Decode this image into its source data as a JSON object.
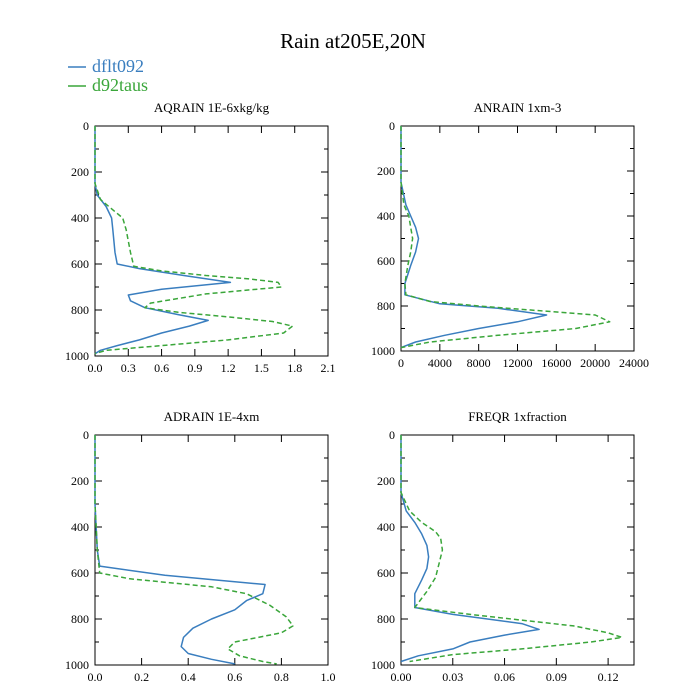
{
  "chart_data": {
    "title": "Rain at205E,20N",
    "legend": {
      "placement": "top-left",
      "entries": [
        {
          "name": "dflt092",
          "color": "#3a7ebf",
          "style": "solid"
        },
        {
          "name": "d92taus",
          "color": "#3aa63a",
          "style": "dashed"
        }
      ]
    },
    "panels": [
      {
        "type": "line",
        "title": "AQRAIN  1E-6xkg/kg",
        "xlim": [
          0,
          2.1
        ],
        "xticks": [
          "0.0",
          "0.3",
          "0.6",
          "0.9",
          "1.2",
          "1.5",
          "1.8",
          "2.1"
        ],
        "ylim": [
          1000,
          0
        ],
        "yticks": [
          "0",
          "200",
          "400",
          "600",
          "800",
          "1000"
        ],
        "series": [
          {
            "name": "dflt092",
            "points": [
              [
                0,
                0
              ],
              [
                0,
                250
              ],
              [
                0.02,
                300
              ],
              [
                0.1,
                350
              ],
              [
                0.15,
                400
              ],
              [
                0.16,
                450
              ],
              [
                0.17,
                500
              ],
              [
                0.18,
                550
              ],
              [
                0.2,
                600
              ],
              [
                0.4,
                620
              ],
              [
                0.8,
                650
              ],
              [
                1.22,
                680
              ],
              [
                0.6,
                710
              ],
              [
                0.3,
                735
              ],
              [
                0.32,
                760
              ],
              [
                0.45,
                790
              ],
              [
                0.75,
                820
              ],
              [
                1.02,
                845
              ],
              [
                0.85,
                870
              ],
              [
                0.6,
                900
              ],
              [
                0.4,
                930
              ],
              [
                0.2,
                955
              ],
              [
                0.05,
                975
              ],
              [
                0,
                990
              ]
            ]
          },
          {
            "name": "d92taus",
            "points": [
              [
                0,
                0
              ],
              [
                0,
                250
              ],
              [
                0.05,
                320
              ],
              [
                0.15,
                360
              ],
              [
                0.25,
                400
              ],
              [
                0.28,
                450
              ],
              [
                0.3,
                500
              ],
              [
                0.32,
                550
              ],
              [
                0.35,
                610
              ],
              [
                0.6,
                630
              ],
              [
                1.0,
                650
              ],
              [
                1.4,
                665
              ],
              [
                1.65,
                680
              ],
              [
                1.68,
                700
              ],
              [
                1.0,
                730
              ],
              [
                0.5,
                770
              ],
              [
                0.45,
                790
              ],
              [
                0.75,
                810
              ],
              [
                1.2,
                830
              ],
              [
                1.6,
                850
              ],
              [
                1.78,
                870
              ],
              [
                1.7,
                900
              ],
              [
                1.2,
                930
              ],
              [
                0.6,
                955
              ],
              [
                0.1,
                975
              ],
              [
                0,
                990
              ]
            ]
          }
        ]
      },
      {
        "type": "line",
        "title": "ANRAIN  1xm-3",
        "xlim": [
          0,
          24000
        ],
        "xticks": [
          "0",
          "4000",
          "8000",
          "12000",
          "16000",
          "20000",
          "24000"
        ],
        "ylim": [
          1000,
          0
        ],
        "yticks": [
          "0",
          "200",
          "400",
          "600",
          "800",
          "1000"
        ],
        "series": [
          {
            "name": "dflt092",
            "points": [
              [
                0,
                0
              ],
              [
                0,
                250
              ],
              [
                500,
                350
              ],
              [
                1000,
                400
              ],
              [
                1500,
                450
              ],
              [
                1800,
                500
              ],
              [
                1500,
                560
              ],
              [
                1000,
                620
              ],
              [
                400,
                700
              ],
              [
                400,
                750
              ],
              [
                4000,
                790
              ],
              [
                10000,
                810
              ],
              [
                15000,
                840
              ],
              [
                12000,
                870
              ],
              [
                8000,
                900
              ],
              [
                4500,
                930
              ],
              [
                1500,
                960
              ],
              [
                0,
                985
              ]
            ]
          },
          {
            "name": "d92taus",
            "points": [
              [
                0,
                0
              ],
              [
                0,
                250
              ],
              [
                300,
                350
              ],
              [
                800,
                400
              ],
              [
                1000,
                450
              ],
              [
                1200,
                500
              ],
              [
                1000,
                560
              ],
              [
                700,
                620
              ],
              [
                400,
                700
              ],
              [
                500,
                750
              ],
              [
                3000,
                780
              ],
              [
                8000,
                800
              ],
              [
                14000,
                820
              ],
              [
                20000,
                840
              ],
              [
                21500,
                870
              ],
              [
                18000,
                900
              ],
              [
                10000,
                930
              ],
              [
                3000,
                960
              ],
              [
                0,
                985
              ]
            ]
          }
        ]
      },
      {
        "type": "line",
        "title": "ADRAIN  1E-4xm",
        "xlim": [
          0,
          1.0
        ],
        "xticks": [
          "0.0",
          "0.2",
          "0.4",
          "0.6",
          "0.8",
          "1.0"
        ],
        "ylim": [
          1000,
          0
        ],
        "yticks": [
          "0",
          "200",
          "400",
          "600",
          "800",
          "1000"
        ],
        "series": [
          {
            "name": "dflt092",
            "points": [
              [
                0,
                0
              ],
              [
                0,
                300
              ],
              [
                0.01,
                500
              ],
              [
                0.02,
                570
              ],
              [
                0.3,
                610
              ],
              [
                0.73,
                650
              ],
              [
                0.72,
                690
              ],
              [
                0.65,
                720
              ],
              [
                0.6,
                760
              ],
              [
                0.5,
                800
              ],
              [
                0.42,
                840
              ],
              [
                0.38,
                880
              ],
              [
                0.37,
                920
              ],
              [
                0.4,
                950
              ],
              [
                0.5,
                975
              ],
              [
                0.6,
                995
              ]
            ]
          },
          {
            "name": "d92taus",
            "points": [
              [
                0,
                0
              ],
              [
                0,
                300
              ],
              [
                0.01,
                500
              ],
              [
                0.02,
                600
              ],
              [
                0.15,
                625
              ],
              [
                0.5,
                660
              ],
              [
                0.65,
                690
              ],
              [
                0.75,
                740
              ],
              [
                0.82,
                790
              ],
              [
                0.85,
                830
              ],
              [
                0.8,
                860
              ],
              [
                0.7,
                880
              ],
              [
                0.6,
                900
              ],
              [
                0.57,
                930
              ],
              [
                0.62,
                960
              ],
              [
                0.72,
                985
              ],
              [
                0.78,
                995
              ]
            ]
          }
        ]
      },
      {
        "type": "line",
        "title": "FREQR  1xfraction",
        "xlim": [
          0,
          0.135
        ],
        "xticks": [
          "0.00",
          "0.03",
          "0.06",
          "0.09",
          "0.12"
        ],
        "ylim": [
          1000,
          0
        ],
        "yticks": [
          "0",
          "200",
          "400",
          "600",
          "800",
          "1000"
        ],
        "series": [
          {
            "name": "dflt092",
            "points": [
              [
                0,
                0
              ],
              [
                0,
                250
              ],
              [
                0.003,
                330
              ],
              [
                0.008,
                380
              ],
              [
                0.012,
                430
              ],
              [
                0.015,
                480
              ],
              [
                0.016,
                530
              ],
              [
                0.015,
                580
              ],
              [
                0.012,
                630
              ],
              [
                0.008,
                690
              ],
              [
                0.008,
                750
              ],
              [
                0.03,
                780
              ],
              [
                0.07,
                820
              ],
              [
                0.08,
                845
              ],
              [
                0.06,
                870
              ],
              [
                0.04,
                900
              ],
              [
                0.03,
                930
              ],
              [
                0.01,
                960
              ],
              [
                0,
                985
              ]
            ]
          },
          {
            "name": "d92taus",
            "points": [
              [
                0,
                0
              ],
              [
                0,
                250
              ],
              [
                0.005,
                330
              ],
              [
                0.012,
                380
              ],
              [
                0.02,
                420
              ],
              [
                0.023,
                450
              ],
              [
                0.024,
                500
              ],
              [
                0.022,
                560
              ],
              [
                0.02,
                620
              ],
              [
                0.015,
                680
              ],
              [
                0.008,
                750
              ],
              [
                0.04,
                780
              ],
              [
                0.1,
                830
              ],
              [
                0.12,
                860
              ],
              [
                0.128,
                880
              ],
              [
                0.11,
                900
              ],
              [
                0.07,
                930
              ],
              [
                0.03,
                955
              ],
              [
                0.005,
                985
              ]
            ]
          }
        ]
      }
    ]
  }
}
